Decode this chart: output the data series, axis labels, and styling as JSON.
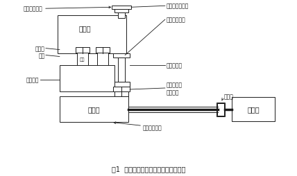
{
  "title": "图1  轧机减速机及相关部件连接示意图",
  "bg_color": "#ffffff",
  "lc": "#1a1a1a",
  "labels": {
    "jiansuji": "减速机",
    "jiansuji_input_top": "减速机输入轴",
    "input_seal": "输入轴密封压盖",
    "jiansuji_input_right": "减速机输入轴",
    "huajianzhou": "花键轴",
    "zhagan": "轧辊",
    "zhaji_tuojia": "轧机托架",
    "changtonglianzhou": "长筒联轴器",
    "umbrella_out_seal": "伞齿箱输出\n密封压盖",
    "umbrella_box": "伞齿箱",
    "umbrella_out_shaft": "伞齿箱输出轴",
    "clutch": "离合器",
    "motor": "电动机",
    "zhaji": "轧机"
  }
}
